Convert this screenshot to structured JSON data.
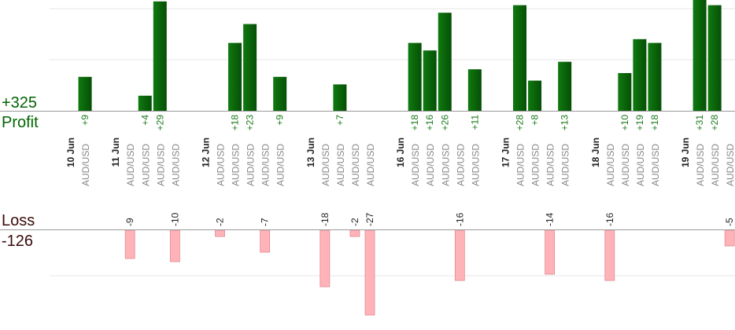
{
  "summary": {
    "profit_total": "+325",
    "profit_label": "Profit",
    "loss_label": "Loss",
    "loss_total": "-126"
  },
  "colors": {
    "profit_bar": "#0b6b0b",
    "profit_text": "#1a7a1a",
    "loss_bar": "#ffb3b8",
    "loss_bar_edge": "#e08a90",
    "date_label": "#222222",
    "pair_label": "#888888",
    "axis": "#999999",
    "grid": "#e6e6e6"
  },
  "chart_data": {
    "type": "bar",
    "note_units": "pips per trade",
    "columns": [
      {
        "date": "10 Jun"
      },
      {
        "pair": "AUD/USD",
        "value": 9
      },
      {},
      {
        "date": "11 Jun"
      },
      {
        "pair": "AUD/USD",
        "value": -9
      },
      {
        "pair": "AUD/USD",
        "value": 4
      },
      {
        "pair": "AUD/USD",
        "value": 29
      },
      {
        "pair": "AUD/USD",
        "value": -10
      },
      {},
      {
        "date": "12 Jun"
      },
      {
        "pair": "AUD/USD",
        "value": -2
      },
      {
        "pair": "AUD/USD",
        "value": 18
      },
      {
        "pair": "AUD/USD",
        "value": 23
      },
      {
        "pair": "AUD/USD",
        "value": -7
      },
      {
        "pair": "AUD/USD",
        "value": 9
      },
      {},
      {
        "date": "13 Jun"
      },
      {
        "pair": "AUD/USD",
        "value": -18
      },
      {
        "pair": "AUD/USD",
        "value": 7
      },
      {
        "pair": "AUD/USD",
        "value": -2
      },
      {
        "pair": "AUD/USD",
        "value": -27
      },
      {},
      {
        "date": "16 Jun"
      },
      {
        "pair": "AUD/USD",
        "value": 18
      },
      {
        "pair": "AUD/USD",
        "value": 16
      },
      {
        "pair": "AUD/USD",
        "value": 26
      },
      {
        "pair": "AUD/USD",
        "value": -16
      },
      {
        "pair": "AUD/USD",
        "value": 11
      },
      {},
      {
        "date": "17 Jun"
      },
      {
        "pair": "AUD/USD",
        "value": 28
      },
      {
        "pair": "AUD/USD",
        "value": 8
      },
      {
        "pair": "AUD/USD",
        "value": -14
      },
      {
        "pair": "AUD/USD",
        "value": 13
      },
      {},
      {
        "date": "18 Jun"
      },
      {
        "pair": "AUD/USD",
        "value": -16
      },
      {
        "pair": "AUD/USD",
        "value": 10
      },
      {
        "pair": "AUD/USD",
        "value": 19
      },
      {
        "pair": "AUD/USD",
        "value": 18
      },
      {},
      {
        "date": "19 Jun"
      },
      {
        "pair": "AUD/USD",
        "value": 31
      },
      {
        "pair": "AUD/USD",
        "value": 28
      },
      {
        "pair": "AUD/USD",
        "value": -5
      }
    ]
  }
}
